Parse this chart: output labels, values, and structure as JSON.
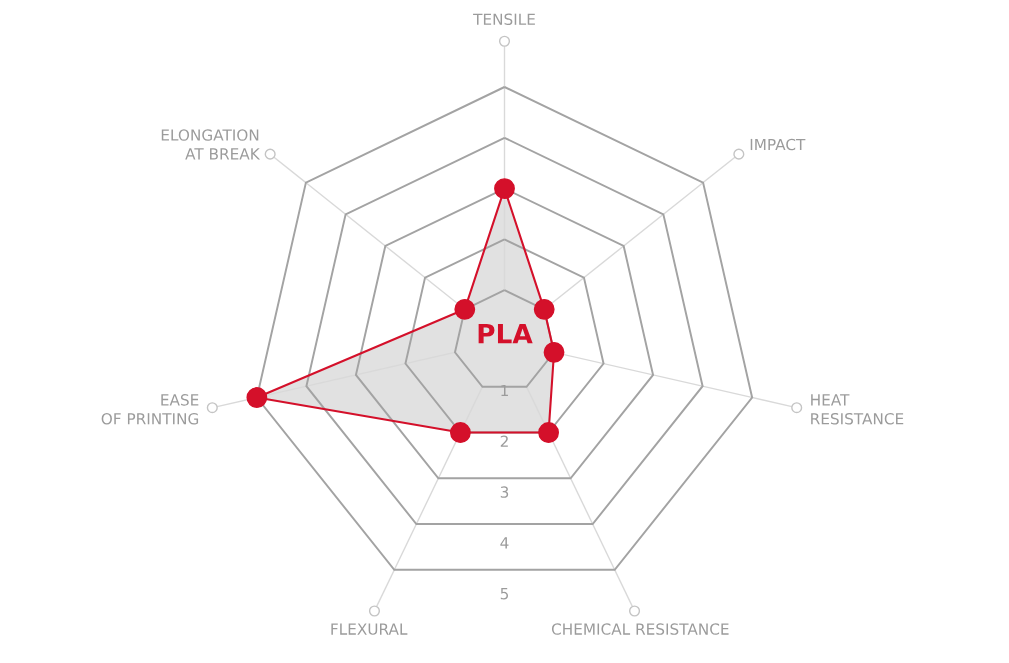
{
  "chart_data": {
    "type": "radar",
    "categories": [
      "TENSILE",
      "IMPACT",
      "HEAT\nRESISTANCE",
      "CHEMICAL RESISTANCE",
      "FLEXURAL",
      "EASE\nOF PRINTING",
      "ELONGATION\nAT BREAK"
    ],
    "series": [
      {
        "name": "PLA",
        "color": "#d4102a",
        "values": [
          3,
          1,
          1,
          2,
          2,
          5,
          1
        ]
      }
    ],
    "ylim": [
      0,
      5
    ],
    "yticks": [
      1,
      2,
      3,
      4,
      5
    ],
    "grid": true,
    "marker": "circle",
    "line_style": "solid"
  }
}
